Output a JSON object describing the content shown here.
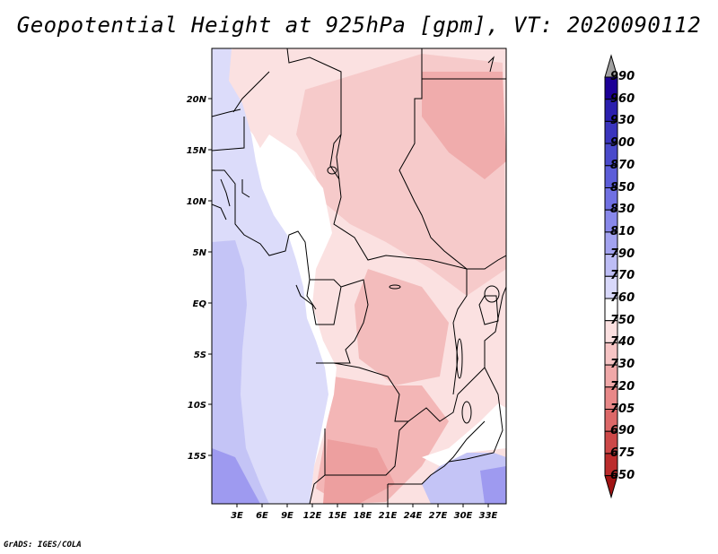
{
  "title": "Geopotential Height at 925hPa [gpm], VT: 2020090112",
  "credit": "GrADS: IGES/COLA",
  "map": {
    "region": "Central and Southern Africa",
    "lat_labels": [
      "20N",
      "15N",
      "10N",
      "5N",
      "EQ",
      "5S",
      "10S",
      "15S"
    ],
    "lon_labels": [
      "3E",
      "6E",
      "9E",
      "12E",
      "15E",
      "18E",
      "21E",
      "24E",
      "27E",
      "30E",
      "33E"
    ]
  },
  "colorbar": {
    "levels": [
      "990",
      "960",
      "930",
      "900",
      "870",
      "850",
      "830",
      "810",
      "790",
      "770",
      "760",
      "750",
      "740",
      "730",
      "720",
      "705",
      "690",
      "675",
      "650"
    ],
    "colors": [
      "#1c0096",
      "#2b1fae",
      "#3a35bd",
      "#4a4acb",
      "#5c5dd8",
      "#7070e2",
      "#8888ea",
      "#a3a3f0",
      "#bdbdf5",
      "#d8d8fa",
      "#ffffff",
      "#fbe0e0",
      "#f6c4c4",
      "#f0a8a8",
      "#e88888",
      "#dc6868",
      "#cd4848",
      "#bb2c2c",
      "#a01414"
    ]
  }
}
